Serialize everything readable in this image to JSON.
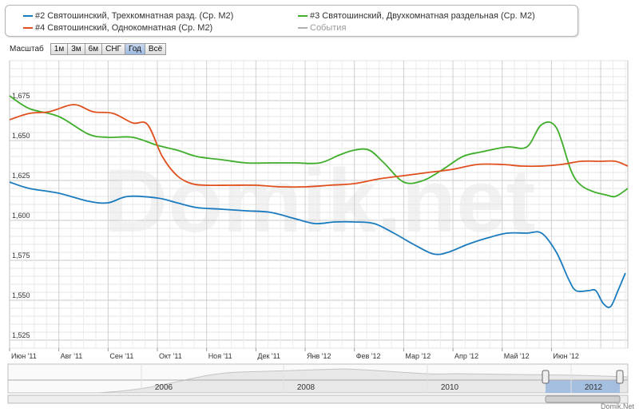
{
  "legend": {
    "items": [
      {
        "label": "#2 Святошинский, Трехкомнатная разд. (Ср. М2)",
        "color": "#1a7bbf"
      },
      {
        "label": "#3 Святошинский, Двухкомнатная раздельная (Ср. М2)",
        "color": "#3fae2a"
      },
      {
        "label": "#4 Святошинский, Однокомнатная (Ср. М2)",
        "color": "#e0501e"
      },
      {
        "label": "События",
        "color": "#b0b0b0"
      }
    ]
  },
  "zoom": {
    "label": "Масштаб",
    "buttons": [
      "1м",
      "3м",
      "6м",
      "СНГ",
      "Год",
      "Всё"
    ],
    "active": "Год"
  },
  "watermark": "Domik.net",
  "credit": "Domik.Net",
  "navigator": {
    "labels": [
      "2006",
      "2008",
      "2010",
      "2012"
    ]
  },
  "chart_data": {
    "type": "line",
    "x_labels": [
      "Июн '11",
      "Авг '11",
      "Сен '11",
      "Окт '11",
      "Ноя '11",
      "Дек '11",
      "Янв '12",
      "Фев '12",
      "Мар '12",
      "Апр '12",
      "Май '12",
      "Июн '12"
    ],
    "y_ticks": [
      "1,525",
      "1,550",
      "1,575",
      "1,600",
      "1,625",
      "1,650",
      "1,675"
    ],
    "ylim": [
      1520,
      1700
    ],
    "xlim": [
      0,
      12.55
    ],
    "grid": true,
    "legend_position": "top",
    "series": [
      {
        "name": "#2 Святошинский, Трехкомнатная разд. (Ср. М2)",
        "color": "#1a7bbf",
        "points": [
          [
            0,
            1624
          ],
          [
            0.4,
            1620
          ],
          [
            1,
            1617
          ],
          [
            1.6,
            1612
          ],
          [
            2,
            1611
          ],
          [
            2.4,
            1615
          ],
          [
            3,
            1614
          ],
          [
            3.4,
            1611
          ],
          [
            3.8,
            1608
          ],
          [
            4.3,
            1607
          ],
          [
            4.8,
            1606
          ],
          [
            5.3,
            1605
          ],
          [
            5.8,
            1601
          ],
          [
            6.2,
            1598
          ],
          [
            6.6,
            1599
          ],
          [
            7,
            1599
          ],
          [
            7.4,
            1598
          ],
          [
            7.8,
            1592
          ],
          [
            8.2,
            1585
          ],
          [
            8.6,
            1579
          ],
          [
            8.9,
            1580
          ],
          [
            9.3,
            1585
          ],
          [
            9.7,
            1589
          ],
          [
            10.1,
            1592
          ],
          [
            10.5,
            1592
          ],
          [
            10.8,
            1592
          ],
          [
            11.1,
            1580
          ],
          [
            11.35,
            1563
          ],
          [
            11.5,
            1556
          ],
          [
            11.75,
            1556
          ],
          [
            11.9,
            1556
          ],
          [
            12.05,
            1548
          ],
          [
            12.2,
            1546
          ],
          [
            12.35,
            1556
          ],
          [
            12.5,
            1567
          ]
        ]
      },
      {
        "name": "#3 Святошинский, Двухкомнатная раздельная (Ср. М2)",
        "color": "#3fae2a",
        "points": [
          [
            0,
            1678
          ],
          [
            0.4,
            1670
          ],
          [
            1,
            1665
          ],
          [
            1.6,
            1654
          ],
          [
            2,
            1652
          ],
          [
            2.5,
            1652
          ],
          [
            3,
            1647
          ],
          [
            3.4,
            1644
          ],
          [
            3.8,
            1640
          ],
          [
            4.3,
            1638
          ],
          [
            4.8,
            1636
          ],
          [
            5.3,
            1636
          ],
          [
            5.8,
            1636
          ],
          [
            6.3,
            1636
          ],
          [
            6.7,
            1641
          ],
          [
            7,
            1644
          ],
          [
            7.3,
            1644
          ],
          [
            7.6,
            1636
          ],
          [
            8,
            1624
          ],
          [
            8.4,
            1625
          ],
          [
            8.8,
            1632
          ],
          [
            9.2,
            1640
          ],
          [
            9.6,
            1643
          ],
          [
            10.1,
            1646
          ],
          [
            10.5,
            1646
          ],
          [
            10.8,
            1660
          ],
          [
            11.1,
            1658
          ],
          [
            11.4,
            1631
          ],
          [
            11.6,
            1622
          ],
          [
            11.85,
            1618
          ],
          [
            12.1,
            1616
          ],
          [
            12.3,
            1615
          ],
          [
            12.55,
            1620
          ]
        ]
      },
      {
        "name": "#4 Святошинский, Однокомнатная (Ср. М2)",
        "color": "#e0501e",
        "points": [
          [
            0,
            1663
          ],
          [
            0.4,
            1667
          ],
          [
            0.8,
            1668
          ],
          [
            1.2,
            1672
          ],
          [
            1.4,
            1672
          ],
          [
            1.7,
            1668
          ],
          [
            2.1,
            1667
          ],
          [
            2.5,
            1661
          ],
          [
            2.8,
            1660
          ],
          [
            3.1,
            1640
          ],
          [
            3.4,
            1628
          ],
          [
            3.7,
            1623
          ],
          [
            4,
            1622
          ],
          [
            4.5,
            1622
          ],
          [
            5,
            1622
          ],
          [
            5.5,
            1621
          ],
          [
            6,
            1621
          ],
          [
            6.5,
            1622
          ],
          [
            7,
            1623
          ],
          [
            7.5,
            1626
          ],
          [
            8,
            1628
          ],
          [
            8.5,
            1630
          ],
          [
            9,
            1632
          ],
          [
            9.5,
            1635
          ],
          [
            10,
            1635
          ],
          [
            10.4,
            1634
          ],
          [
            10.8,
            1634
          ],
          [
            11.2,
            1635
          ],
          [
            11.6,
            1637
          ],
          [
            12,
            1637
          ],
          [
            12.3,
            1637
          ],
          [
            12.55,
            1634
          ]
        ]
      }
    ]
  }
}
